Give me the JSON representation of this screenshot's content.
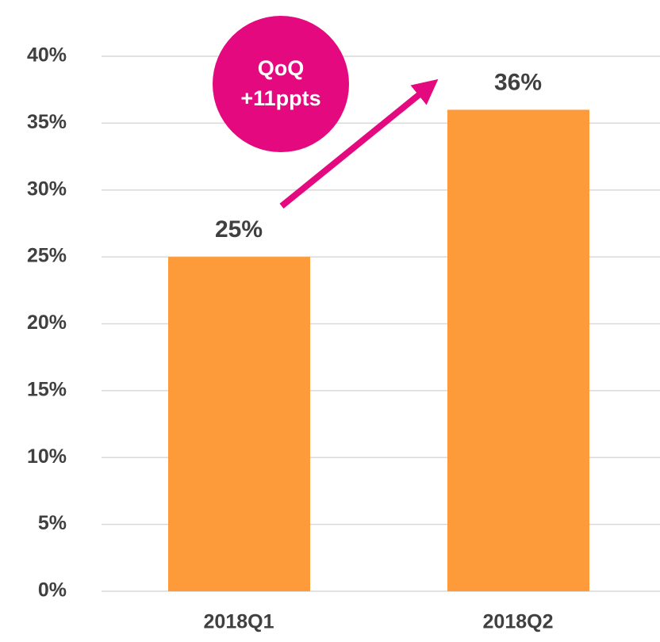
{
  "chart_data": {
    "type": "bar",
    "categories": [
      "2018Q1",
      "2018Q2"
    ],
    "values": [
      25,
      36
    ],
    "value_labels": [
      "25%",
      "36%"
    ],
    "color": "#fd9a3a",
    "ylim": [
      0,
      40
    ],
    "yticks": [
      {
        "value": 0,
        "label": "0%"
      },
      {
        "value": 5,
        "label": "5%"
      },
      {
        "value": 10,
        "label": "10%"
      },
      {
        "value": 15,
        "label": "15%"
      },
      {
        "value": 20,
        "label": "20%"
      },
      {
        "value": 25,
        "label": "25%"
      },
      {
        "value": 30,
        "label": "30%"
      },
      {
        "value": 35,
        "label": "35%"
      },
      {
        "value": 40,
        "label": "40%"
      }
    ],
    "grid": true,
    "annotation": [
      "QoQ",
      "+11ppts"
    ],
    "annotation_color": "#e5097f"
  }
}
